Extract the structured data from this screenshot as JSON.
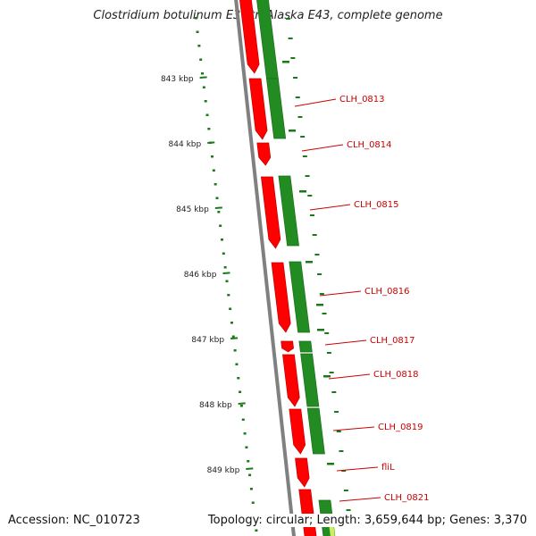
{
  "title": "Clostridium botulinum E3 str. Alaska E43, complete genome",
  "footer": {
    "accession": "Accession: NC_010723",
    "topology": "Topology: circular; Length: 3,659,644 bp; Genes: 3,370"
  },
  "kbp_ticks": [
    "843 kbp",
    "844 kbp",
    "845 kbp",
    "846 kbp",
    "847 kbp",
    "848 kbp",
    "849 kbp"
  ],
  "gene_labels": [
    "CLH_0813",
    "CLH_0814",
    "CLH_0815",
    "CLH_0816",
    "CLH_0817",
    "CLH_0818",
    "CLH_0819",
    "fliL",
    "CLH_0821"
  ],
  "colors": {
    "cds_strand": "#ff0000",
    "gene_strand": "#228b22",
    "backbone": "#808080",
    "tick": "#1a7a1a",
    "label": "#cc0000",
    "accent_light": "#c8f060"
  }
}
